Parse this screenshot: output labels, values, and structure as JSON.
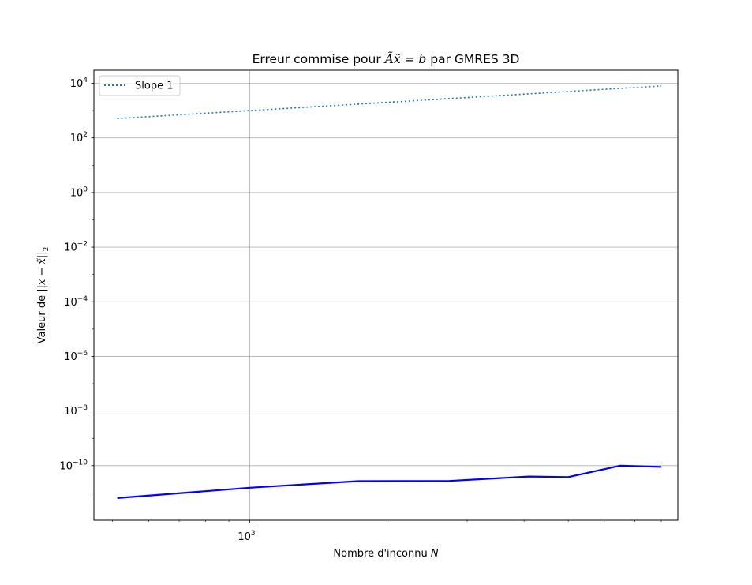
{
  "chart_data": {
    "type": "line",
    "title": "Erreur commise pour Ãx̃ = b par GMRES 3D",
    "title_parts": [
      "Erreur commise pour ",
      "Ãx̃",
      " = ",
      "b",
      " par GMRES 3D"
    ],
    "xlabel": "Nombre d'inconnu N",
    "xlabel_parts": [
      "Nombre d'inconnu ",
      "N"
    ],
    "ylabel": "Valeur de ||x − x̃||₂",
    "ylabel_parts": [
      "Valeur de ||",
      "x",
      " − ",
      "x̃",
      "||",
      "2"
    ],
    "x_scale": "log",
    "y_scale": "log",
    "xlim": [
      455,
      8700
    ],
    "ylim": [
      1e-12,
      30000.0
    ],
    "x_ticks": [
      {
        "base": "10",
        "exp": "3",
        "value": 1000
      }
    ],
    "y_ticks": [
      {
        "base": "10",
        "exp": "4",
        "value": 10000.0
      },
      {
        "base": "10",
        "exp": "2",
        "value": 100.0
      },
      {
        "base": "10",
        "exp": "0",
        "value": 1
      },
      {
        "base": "10",
        "exp": "−2",
        "value": 0.01
      },
      {
        "base": "10",
        "exp": "−4",
        "value": 0.0001
      },
      {
        "base": "10",
        "exp": "−6",
        "value": 1e-06
      },
      {
        "base": "10",
        "exp": "−8",
        "value": 1e-08
      },
      {
        "base": "10",
        "exp": "−10",
        "value": 1e-10
      }
    ],
    "grid": true,
    "legend_position": "top-left",
    "series": [
      {
        "name": "Slope 1",
        "style": "dotted",
        "color": "#1f77b4",
        "in_legend": true,
        "x": [
          512,
          1000,
          1728,
          2744,
          4096,
          5832,
          8000
        ],
        "y": [
          512,
          1000,
          1728,
          2744,
          4096,
          5832,
          8000
        ]
      },
      {
        "name": "",
        "style": "solid",
        "color": "#0000ff",
        "in_legend": false,
        "x": [
          512,
          1000,
          1728,
          2744,
          4096,
          5000,
          6500,
          8000
        ],
        "y": [
          6.5e-12,
          1.55e-11,
          2.7e-11,
          2.75e-11,
          4e-11,
          3.8e-11,
          1e-10,
          9e-11
        ]
      }
    ]
  }
}
